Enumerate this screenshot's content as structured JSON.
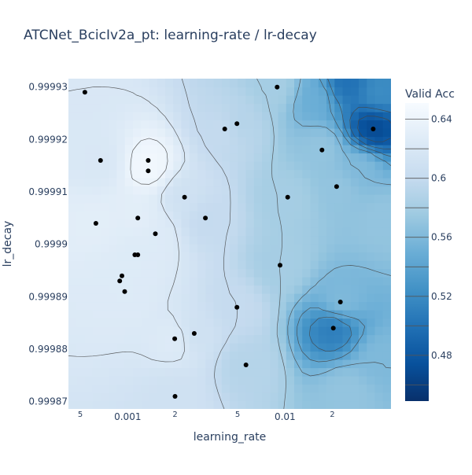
{
  "chart_data": {
    "type": "contour",
    "title": "ATCNet_BcicIv2a_pt: learning-rate / lr-decay",
    "xlabel": "learning_rate",
    "ylabel": "lr_decay",
    "x_scale": "log",
    "xlim": [
      0.00042,
      0.0472
    ],
    "ylim": [
      0.9998686,
      0.9999316
    ],
    "x_ticks": [
      {
        "value": 0.0005,
        "label": "5",
        "minor": true
      },
      {
        "value": 0.001,
        "label": "0.001",
        "minor": false
      },
      {
        "value": 0.002,
        "label": "2",
        "minor": true
      },
      {
        "value": 0.005,
        "label": "5",
        "minor": true
      },
      {
        "value": 0.01,
        "label": "0.01",
        "minor": false
      },
      {
        "value": 0.02,
        "label": "2",
        "minor": true
      }
    ],
    "y_ticks": [
      {
        "value": 0.99987,
        "label": "0.99987"
      },
      {
        "value": 0.99988,
        "label": "0.99988"
      },
      {
        "value": 0.99989,
        "label": "0.99989"
      },
      {
        "value": 0.9999,
        "label": "0.9999"
      },
      {
        "value": 0.99991,
        "label": "0.99991"
      },
      {
        "value": 0.99992,
        "label": "0.99992"
      },
      {
        "value": 0.99993,
        "label": "0.99993"
      }
    ],
    "colorbar": {
      "title": "Valid Acc",
      "range": [
        0.449,
        0.651
      ],
      "ticks": [
        {
          "value": 0.48,
          "label": "0.48"
        },
        {
          "value": 0.52,
          "label": "0.52"
        },
        {
          "value": 0.56,
          "label": "0.56"
        },
        {
          "value": 0.6,
          "label": "0.6"
        },
        {
          "value": 0.64,
          "label": "0.64"
        }
      ],
      "colorscale": [
        "#08306b",
        "#08519c",
        "#2171b5",
        "#4292c6",
        "#6baed6",
        "#9ecae1",
        "#c6dbef",
        "#deebf7",
        "#f7fbff"
      ]
    },
    "points": [
      {
        "x": 0.000534,
        "y": 0.999929
      },
      {
        "x": 0.000672,
        "y": 0.999916
      },
      {
        "x": 0.000628,
        "y": 0.999904
      },
      {
        "x": 0.000919,
        "y": 0.999894
      },
      {
        "x": 0.00089,
        "y": 0.999893
      },
      {
        "x": 0.000957,
        "y": 0.999891
      },
      {
        "x": 0.00111,
        "y": 0.999898
      },
      {
        "x": 0.00116,
        "y": 0.999898
      },
      {
        "x": 0.00116,
        "y": 0.999905
      },
      {
        "x": 0.00135,
        "y": 0.999916
      },
      {
        "x": 0.00135,
        "y": 0.999914
      },
      {
        "x": 0.0015,
        "y": 0.999902
      },
      {
        "x": 0.00199,
        "y": 0.999882
      },
      {
        "x": 0.002,
        "y": 0.999871
      },
      {
        "x": 0.0023,
        "y": 0.999909
      },
      {
        "x": 0.00265,
        "y": 0.999883
      },
      {
        "x": 0.00312,
        "y": 0.999905
      },
      {
        "x": 0.00414,
        "y": 0.999922
      },
      {
        "x": 0.00495,
        "y": 0.999923
      },
      {
        "x": 0.00495,
        "y": 0.999888
      },
      {
        "x": 0.00565,
        "y": 0.999877
      },
      {
        "x": 0.00892,
        "y": 0.99993
      },
      {
        "x": 0.00931,
        "y": 0.999896
      },
      {
        "x": 0.0104,
        "y": 0.999909
      },
      {
        "x": 0.0172,
        "y": 0.999918
      },
      {
        "x": 0.0203,
        "y": 0.999884
      },
      {
        "x": 0.0213,
        "y": 0.999911
      },
      {
        "x": 0.0225,
        "y": 0.999889
      },
      {
        "x": 0.0364,
        "y": 0.999922
      }
    ],
    "acc_samples": [
      {
        "x": 0.000534,
        "y": 0.999929,
        "v": 0.62
      },
      {
        "x": 0.000672,
        "y": 0.999916,
        "v": 0.62
      },
      {
        "x": 0.000628,
        "y": 0.999904,
        "v": 0.63
      },
      {
        "x": 0.000919,
        "y": 0.999894,
        "v": 0.625
      },
      {
        "x": 0.001,
        "y": 0.999891,
        "v": 0.625
      },
      {
        "x": 0.00111,
        "y": 0.999898,
        "v": 0.625
      },
      {
        "x": 0.00116,
        "y": 0.999905,
        "v": 0.63
      },
      {
        "x": 0.00135,
        "y": 0.999915,
        "v": 0.645
      },
      {
        "x": 0.0015,
        "y": 0.999902,
        "v": 0.625
      },
      {
        "x": 0.002,
        "y": 0.999882,
        "v": 0.625
      },
      {
        "x": 0.002,
        "y": 0.999871,
        "v": 0.61
      },
      {
        "x": 0.0023,
        "y": 0.999909,
        "v": 0.61
      },
      {
        "x": 0.00265,
        "y": 0.999883,
        "v": 0.61
      },
      {
        "x": 0.00312,
        "y": 0.999905,
        "v": 0.6
      },
      {
        "x": 0.00414,
        "y": 0.999922,
        "v": 0.6
      },
      {
        "x": 0.00495,
        "y": 0.999923,
        "v": 0.59
      },
      {
        "x": 0.00495,
        "y": 0.999888,
        "v": 0.6
      },
      {
        "x": 0.00565,
        "y": 0.999877,
        "v": 0.59
      },
      {
        "x": 0.00892,
        "y": 0.99993,
        "v": 0.58
      },
      {
        "x": 0.00931,
        "y": 0.999896,
        "v": 0.58
      },
      {
        "x": 0.0104,
        "y": 0.999909,
        "v": 0.58
      },
      {
        "x": 0.0172,
        "y": 0.999918,
        "v": 0.57
      },
      {
        "x": 0.0203,
        "y": 0.999884,
        "v": 0.51
      },
      {
        "x": 0.0213,
        "y": 0.999911,
        "v": 0.57
      },
      {
        "x": 0.0225,
        "y": 0.999889,
        "v": 0.56
      },
      {
        "x": 0.0364,
        "y": 0.999922,
        "v": 0.47
      },
      {
        "x": 0.015,
        "y": 0.999928,
        "v": 0.55
      },
      {
        "x": 0.025,
        "y": 0.999931,
        "v": 0.5
      },
      {
        "x": 0.04,
        "y": 0.999929,
        "v": 0.52
      },
      {
        "x": 0.03,
        "y": 0.999915,
        "v": 0.56
      },
      {
        "x": 0.042,
        "y": 0.999905,
        "v": 0.57
      },
      {
        "x": 0.04,
        "y": 0.999878,
        "v": 0.56
      },
      {
        "x": 0.025,
        "y": 0.999872,
        "v": 0.57
      }
    ]
  }
}
